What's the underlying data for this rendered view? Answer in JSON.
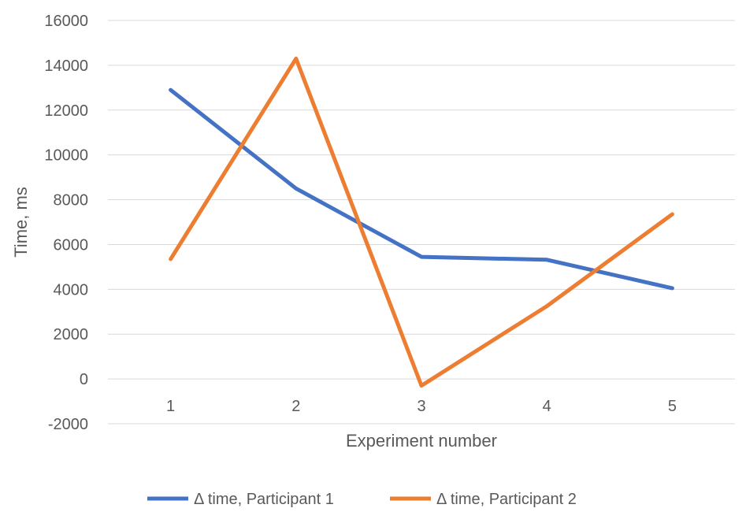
{
  "chart_data": {
    "type": "line",
    "title": "",
    "xlabel": "Experiment number",
    "ylabel": "Time, ms",
    "categories": [
      "1",
      "2",
      "3",
      "4",
      "5"
    ],
    "ylim": [
      -2000,
      16000
    ],
    "yticks": [
      -2000,
      0,
      2000,
      4000,
      6000,
      8000,
      10000,
      12000,
      14000,
      16000
    ],
    "grid": true,
    "legend_position": "bottom",
    "series": [
      {
        "name": "Δ time, Participant 1",
        "color": "#4472c4",
        "values": [
          12900,
          8500,
          5450,
          5320,
          4050
        ]
      },
      {
        "name": "Δ time, Participant 2",
        "color": "#ed7d31",
        "values": [
          5350,
          14300,
          -300,
          3250,
          7350
        ]
      }
    ]
  }
}
